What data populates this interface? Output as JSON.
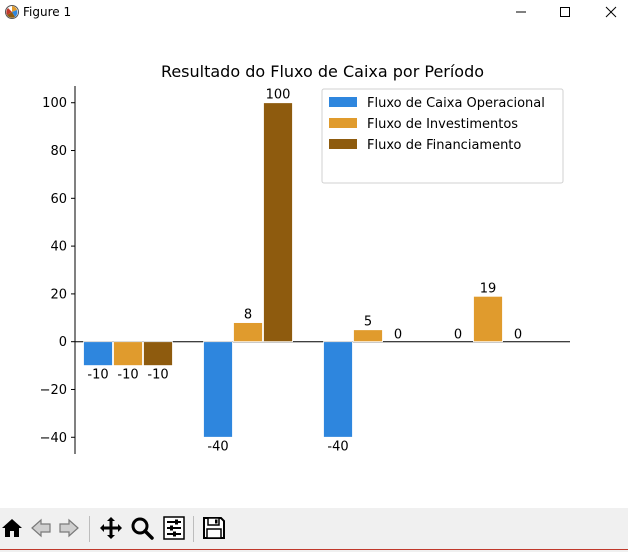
{
  "window": {
    "title": "Figure 1",
    "icon": "matplotlib-figure-icon",
    "controls": [
      "minimize-icon",
      "maximize-icon",
      "close-icon"
    ]
  },
  "toolbar": {
    "buttons": [
      {
        "name": "home-button",
        "icon": "home-icon"
      },
      {
        "name": "back-button",
        "icon": "back-arrow-icon"
      },
      {
        "name": "forward-button",
        "icon": "forward-arrow-icon"
      },
      {
        "name": "pan-button",
        "icon": "move-icon"
      },
      {
        "name": "zoom-button",
        "icon": "zoom-magnifier-icon"
      },
      {
        "name": "configure-subplots-button",
        "icon": "sliders-icon"
      },
      {
        "name": "save-button",
        "icon": "save-disk-icon"
      }
    ]
  },
  "chart_data": {
    "type": "bar",
    "title": "Resultado do Fluxo de Caixa por Período",
    "xlabel": "",
    "ylabel": "",
    "categories": [
      "",
      "",
      "",
      ""
    ],
    "series": [
      {
        "name": "Fluxo de Caixa Operacional",
        "color": "#2e86de",
        "values": [
          -10,
          -40,
          -40,
          0
        ]
      },
      {
        "name": "Fluxo de Investimentos",
        "color": "#e09b2d",
        "values": [
          -10,
          8,
          5,
          19
        ]
      },
      {
        "name": "Fluxo de Financiamento",
        "color": "#8e5b0e",
        "values": [
          -10,
          100,
          0,
          0
        ]
      }
    ],
    "data_labels": [
      [
        "-10",
        "-10",
        "-10"
      ],
      [
        "-40",
        "8",
        "100"
      ],
      [
        "-40",
        "5",
        "0"
      ],
      [
        "0",
        "19",
        "0"
      ]
    ],
    "yticks": [
      -40,
      -20,
      0,
      20,
      40,
      60,
      80,
      100
    ],
    "ylim": [
      -47,
      107
    ],
    "legend_position": "top-right",
    "grid": false
  }
}
